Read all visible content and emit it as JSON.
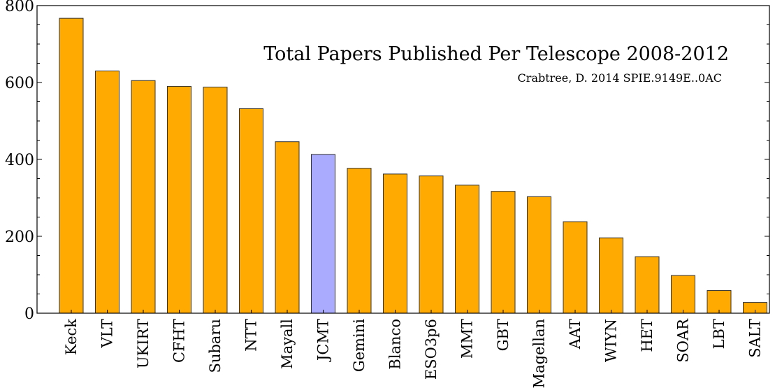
{
  "chart_data": {
    "type": "bar",
    "title": "Total Papers Published Per Telescope 2008-2012",
    "subtitle": "Crabtree, D. 2014 SPIE.9149E..0AC",
    "xlabel": "",
    "ylabel": "",
    "ylim": [
      0,
      800
    ],
    "yticks": [
      0,
      200,
      400,
      600,
      800
    ],
    "grid": false,
    "categories": [
      "Keck",
      "VLT",
      "UKIRT",
      "CFHT",
      "Subaru",
      "NTT",
      "Mayall",
      "JCMT",
      "Gemini",
      "Blanco",
      "ESO3p6",
      "MMT",
      "GBT",
      "Magellan",
      "AAT",
      "WIYN",
      "HET",
      "SOAR",
      "LBT",
      "SALT"
    ],
    "values": [
      767,
      630,
      605,
      590,
      588,
      532,
      446,
      413,
      377,
      362,
      357,
      333,
      317,
      303,
      238,
      196,
      147,
      98,
      59,
      28
    ],
    "highlight_category": "JCMT",
    "colors": {
      "bar": "#ffaa00",
      "highlight": "#aaaaff",
      "edge": "#333333",
      "axis": "#000000"
    }
  }
}
